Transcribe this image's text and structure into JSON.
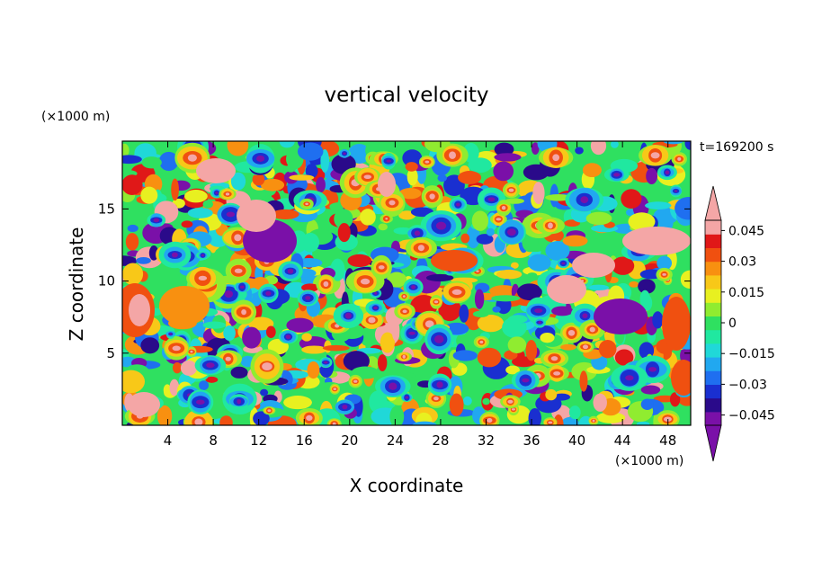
{
  "chart_data": {
    "type": "heatmap",
    "title": "vertical velocity",
    "xlabel": "X coordinate",
    "ylabel": "Z coordinate",
    "x_unit": "(×1000 m)",
    "y_unit": "(×1000 m)",
    "time_label": "t=169200 s",
    "xlim": [
      0,
      50
    ],
    "ylim": [
      0,
      19.7
    ],
    "x_ticks": [
      4,
      8,
      12,
      16,
      20,
      24,
      28,
      32,
      36,
      40,
      44,
      48
    ],
    "y_ticks": [
      5,
      10,
      15
    ],
    "colorbar": {
      "ticks": [
        "0.045",
        "0.03",
        "0.015",
        "0",
        "−0.015",
        "−0.03",
        "−0.045"
      ],
      "tick_values": [
        0.045,
        0.03,
        0.015,
        0,
        -0.015,
        -0.03,
        -0.045
      ],
      "range": [
        -0.05,
        0.05
      ],
      "extend": "both",
      "colors": [
        "#7a10a8",
        "#2a0a8a",
        "#1a2fd0",
        "#1f6ff0",
        "#21a8f0",
        "#20d8d8",
        "#20e8a0",
        "#2fe060",
        "#90ec30",
        "#e8f020",
        "#f8c818",
        "#f89010",
        "#f05010",
        "#e01818",
        "#f4a6a6"
      ]
    },
    "field_description": "2D contour field of vertical velocity over X 0–50 km, Z 0–19.7 km"
  }
}
